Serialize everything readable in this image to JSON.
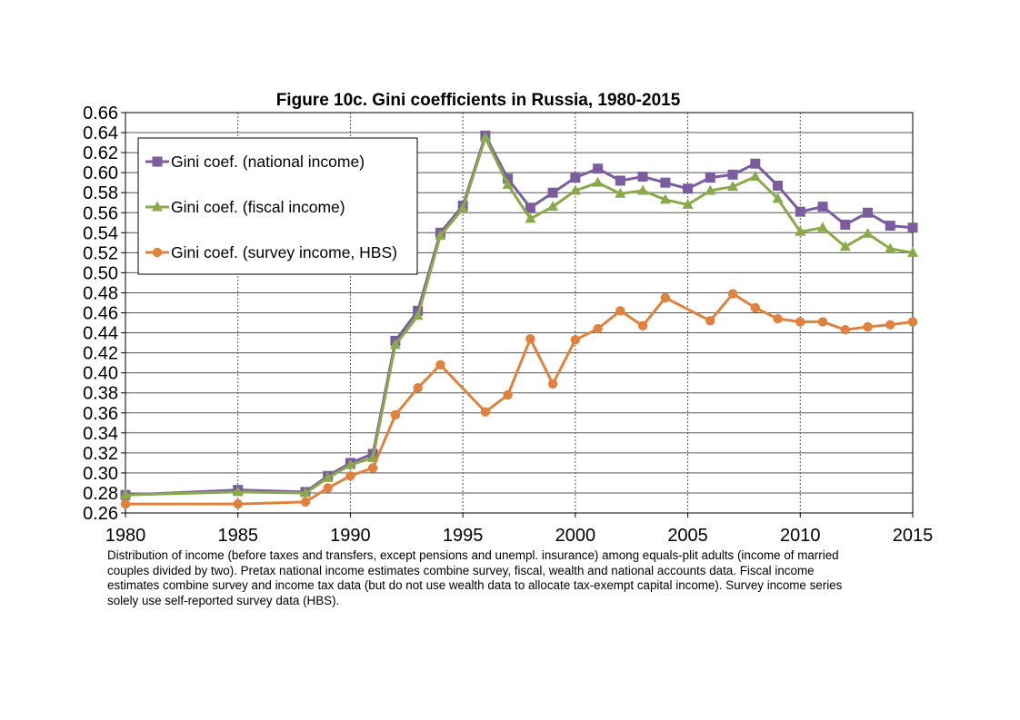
{
  "chart_data": {
    "type": "line",
    "title": "Figure 10c. Gini coefficients in Russia, 1980-2015",
    "xlabel": "",
    "ylabel": "",
    "xlim": [
      1980,
      2015
    ],
    "ylim": [
      0.26,
      0.66
    ],
    "x_ticks": [
      "1980",
      "1985",
      "1990",
      "1995",
      "2000",
      "2005",
      "2010",
      "2015"
    ],
    "y_ticks": [
      "0.26",
      "0.28",
      "0.30",
      "0.32",
      "0.34",
      "0.36",
      "0.38",
      "0.40",
      "0.42",
      "0.44",
      "0.46",
      "0.48",
      "0.50",
      "0.52",
      "0.54",
      "0.56",
      "0.58",
      "0.60",
      "0.62",
      "0.64",
      "0.66"
    ],
    "grid": {
      "horizontal": true,
      "vertical": true
    },
    "legend_position": "top-left",
    "series": [
      {
        "name": "Gini coef. (national income)",
        "color": "#7b5c9e",
        "marker": "square",
        "x": [
          1980,
          1985,
          1988,
          1989,
          1990,
          1991,
          1992,
          1993,
          1994,
          1995,
          1996,
          1997,
          1998,
          1999,
          2000,
          2001,
          2002,
          2003,
          2004,
          2005,
          2006,
          2007,
          2008,
          2009,
          2010,
          2011,
          2012,
          2013,
          2014,
          2015
        ],
        "values": [
          0.278,
          0.283,
          0.281,
          0.297,
          0.31,
          0.319,
          0.432,
          0.462,
          0.54,
          0.567,
          0.637,
          0.594,
          0.565,
          0.58,
          0.595,
          0.604,
          0.592,
          0.596,
          0.59,
          0.584,
          0.595,
          0.598,
          0.609,
          0.587,
          0.561,
          0.566,
          0.548,
          0.56,
          0.547,
          0.545
        ]
      },
      {
        "name": "Gini coef. (fiscal income)",
        "color": "#8aaa4a",
        "marker": "triangle",
        "x": [
          1980,
          1985,
          1988,
          1989,
          1990,
          1991,
          1992,
          1993,
          1994,
          1995,
          1996,
          1997,
          1998,
          1999,
          2000,
          2001,
          2002,
          2003,
          2004,
          2005,
          2006,
          2007,
          2008,
          2009,
          2010,
          2011,
          2012,
          2013,
          2014,
          2015
        ],
        "values": [
          0.278,
          0.281,
          0.28,
          0.295,
          0.308,
          0.315,
          0.428,
          0.457,
          0.537,
          0.564,
          0.635,
          0.588,
          0.554,
          0.566,
          0.582,
          0.59,
          0.579,
          0.582,
          0.573,
          0.568,
          0.582,
          0.586,
          0.596,
          0.574,
          0.541,
          0.545,
          0.526,
          0.539,
          0.524,
          0.52
        ]
      },
      {
        "name": "Gini coef. (survey income, HBS)",
        "color": "#e0823d",
        "marker": "circle",
        "x": [
          1980,
          1985,
          1988,
          1989,
          1990,
          1991,
          1992,
          1993,
          1994,
          1996,
          1997,
          1998,
          1999,
          2000,
          2001,
          2002,
          2003,
          2004,
          2006,
          2007,
          2008,
          2009,
          2010,
          2011,
          2012,
          2013,
          2014,
          2015
        ],
        "values": [
          0.269,
          0.269,
          0.271,
          0.285,
          0.297,
          0.305,
          0.358,
          0.385,
          0.408,
          0.361,
          0.378,
          0.434,
          0.389,
          0.433,
          0.444,
          0.462,
          0.447,
          0.475,
          0.452,
          0.479,
          0.465,
          0.454,
          0.451,
          0.451,
          0.443,
          0.446,
          0.448,
          0.451
        ]
      }
    ]
  },
  "caption": {
    "lines": [
      "Distribution of income (before taxes and transfers, except pensions and unempl. insurance) among equals-plit adults (income of married",
      "couples divided by two). Pretax national income estimates combine survey, fiscal, wealth and national accounts data. Fiscal income",
      "estimates combine survey and income tax data (but do not use wealth data to allocate tax-exempt capital income). Survey income series",
      "solely use self-reported survey data (HBS)."
    ]
  }
}
